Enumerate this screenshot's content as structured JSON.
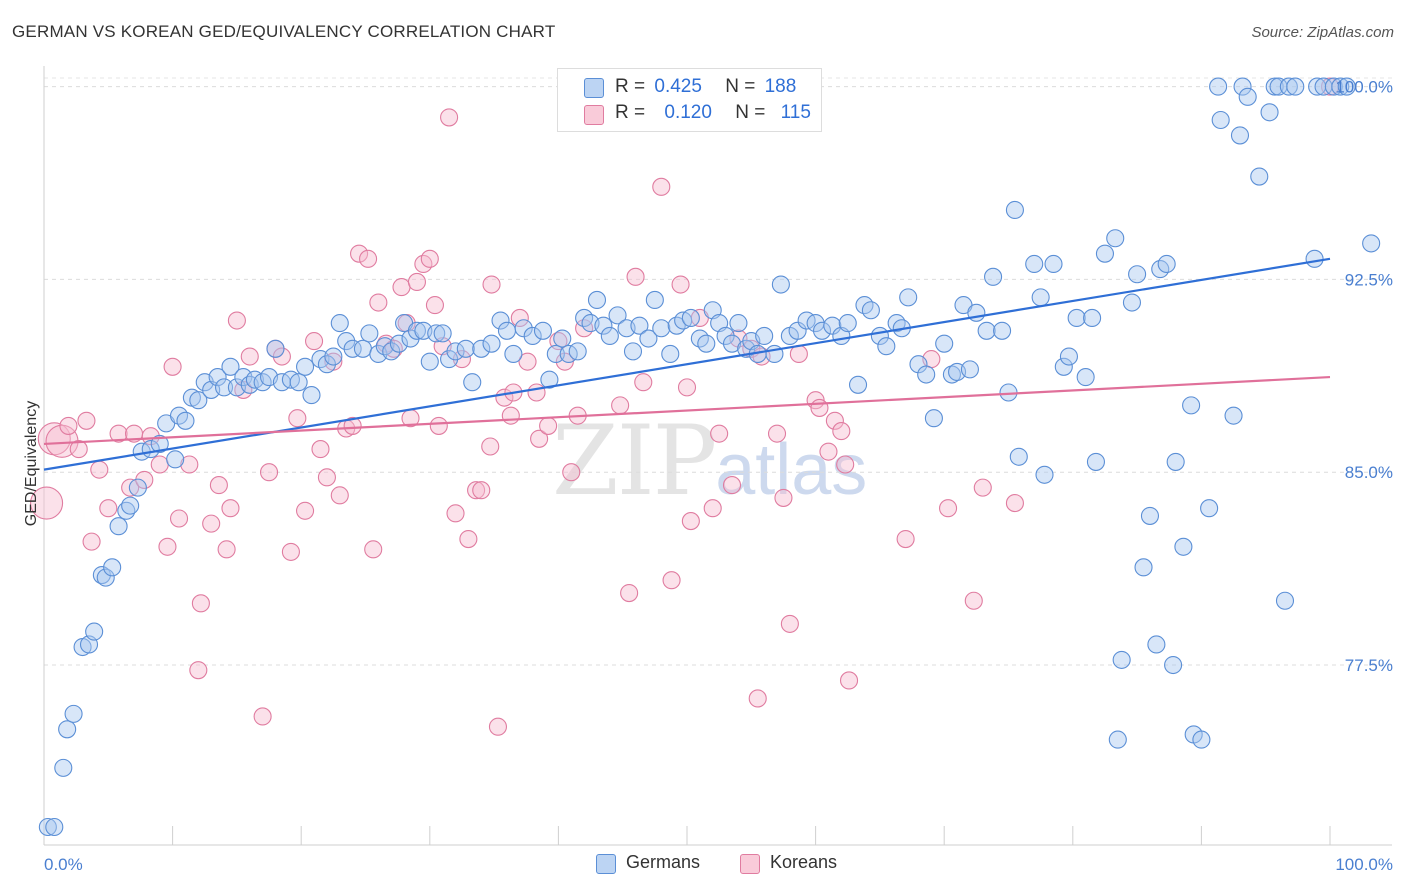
{
  "header": {
    "title": "GERMAN VS KOREAN GED/EQUIVALENCY CORRELATION CHART",
    "source": "Source: ZipAtlas.com"
  },
  "legend": {
    "germans": {
      "r_label": "R =",
      "r_value": "0.425",
      "n_label": "N =",
      "n_value": "188"
    },
    "koreans": {
      "r_label": "R =",
      "r_value": "0.120",
      "n_label": "N =",
      "n_value": "115"
    }
  },
  "bottom_legend": {
    "germans": "Germans",
    "koreans": "Koreans"
  },
  "watermark": {
    "zip": "ZIP",
    "atlas": "atlas"
  },
  "colors": {
    "german_fill": "#a9c8f0",
    "german_stroke": "#5b8fd6",
    "german_line": "#2f6fd6",
    "korean_fill": "#f7bcd0",
    "korean_stroke": "#e07ca0",
    "korean_line": "#e0709a",
    "tick_text": "#4a7fd0"
  },
  "chart_data": {
    "type": "scatter",
    "title": "GERMAN VS KOREAN GED/EQUIVALENCY CORRELATION CHART",
    "xlabel": "",
    "ylabel": "GED/Equivalency",
    "xlim": [
      0,
      100
    ],
    "ylim": [
      70.5,
      100.8
    ],
    "x_tick_labels": [
      "0.0%",
      "100.0%"
    ],
    "y_ticks": [
      77.5,
      85.0,
      92.5,
      100.0
    ],
    "y_tick_labels": [
      "77.5%",
      "85.0%",
      "92.5%",
      "100.0%"
    ],
    "grid": "horizontal dashed",
    "legend_position": "top-center",
    "series": [
      {
        "name": "Germans",
        "r": 0.425,
        "n": 188,
        "trend": {
          "x": [
            0,
            100
          ],
          "y": [
            85.1,
            93.3
          ]
        },
        "points": [
          [
            0.3,
            71.2
          ],
          [
            0.8,
            71.2
          ],
          [
            1.5,
            73.5
          ],
          [
            1.8,
            75.0
          ],
          [
            2.3,
            75.6
          ],
          [
            3.0,
            78.2
          ],
          [
            3.5,
            78.3
          ],
          [
            3.9,
            78.8
          ],
          [
            4.5,
            81.0
          ],
          [
            4.8,
            80.9
          ],
          [
            5.3,
            81.3
          ],
          [
            5.8,
            82.9
          ],
          [
            6.4,
            83.5
          ],
          [
            6.7,
            83.7
          ],
          [
            7.3,
            84.4
          ],
          [
            7.6,
            85.8
          ],
          [
            8.3,
            85.9
          ],
          [
            9.0,
            86.1
          ],
          [
            9.5,
            86.9
          ],
          [
            10.2,
            85.5
          ],
          [
            10.5,
            87.2
          ],
          [
            11.0,
            87.0
          ],
          [
            11.5,
            87.9
          ],
          [
            12.0,
            87.8
          ],
          [
            12.5,
            88.5
          ],
          [
            13.0,
            88.2
          ],
          [
            13.5,
            88.7
          ],
          [
            14.0,
            88.3
          ],
          [
            14.5,
            89.1
          ],
          [
            15.0,
            88.3
          ],
          [
            15.5,
            88.7
          ],
          [
            16.0,
            88.4
          ],
          [
            16.4,
            88.6
          ],
          [
            17.0,
            88.5
          ],
          [
            17.5,
            88.7
          ],
          [
            18.0,
            89.8
          ],
          [
            18.5,
            88.5
          ],
          [
            19.2,
            88.6
          ],
          [
            19.8,
            88.5
          ],
          [
            20.3,
            89.1
          ],
          [
            20.8,
            88.0
          ],
          [
            21.5,
            89.4
          ],
          [
            22.0,
            89.2
          ],
          [
            22.5,
            89.5
          ],
          [
            23.0,
            90.8
          ],
          [
            23.5,
            90.1
          ],
          [
            24.0,
            89.8
          ],
          [
            24.8,
            89.8
          ],
          [
            25.3,
            90.4
          ],
          [
            26.0,
            89.6
          ],
          [
            26.5,
            89.9
          ],
          [
            27.0,
            89.7
          ],
          [
            27.6,
            90.0
          ],
          [
            28.0,
            90.8
          ],
          [
            28.5,
            90.2
          ],
          [
            29.0,
            90.5
          ],
          [
            29.5,
            90.5
          ],
          [
            30.0,
            89.3
          ],
          [
            30.5,
            90.4
          ],
          [
            31.0,
            90.4
          ],
          [
            31.5,
            89.4
          ],
          [
            32.0,
            89.7
          ],
          [
            32.8,
            89.8
          ],
          [
            33.3,
            88.5
          ],
          [
            34.0,
            89.8
          ],
          [
            34.8,
            90.0
          ],
          [
            35.5,
            90.9
          ],
          [
            36.0,
            90.5
          ],
          [
            36.5,
            89.6
          ],
          [
            37.3,
            90.6
          ],
          [
            38.0,
            90.3
          ],
          [
            38.8,
            90.5
          ],
          [
            39.3,
            88.6
          ],
          [
            39.8,
            89.6
          ],
          [
            40.3,
            90.2
          ],
          [
            40.8,
            89.6
          ],
          [
            41.5,
            89.7
          ],
          [
            42.0,
            91.0
          ],
          [
            42.5,
            90.8
          ],
          [
            43.0,
            91.7
          ],
          [
            43.5,
            90.7
          ],
          [
            44.0,
            90.3
          ],
          [
            44.6,
            91.1
          ],
          [
            45.3,
            90.6
          ],
          [
            45.8,
            89.7
          ],
          [
            46.3,
            90.7
          ],
          [
            47.0,
            90.2
          ],
          [
            47.5,
            91.7
          ],
          [
            48.0,
            90.6
          ],
          [
            48.7,
            89.6
          ],
          [
            49.2,
            90.7
          ],
          [
            49.7,
            90.9
          ],
          [
            50.3,
            91.0
          ],
          [
            51.0,
            90.2
          ],
          [
            51.5,
            90.0
          ],
          [
            52.0,
            91.3
          ],
          [
            52.5,
            90.8
          ],
          [
            53.0,
            90.3
          ],
          [
            53.5,
            90.0
          ],
          [
            54.0,
            90.8
          ],
          [
            54.6,
            89.8
          ],
          [
            55.0,
            90.1
          ],
          [
            55.5,
            89.6
          ],
          [
            56.0,
            90.3
          ],
          [
            56.8,
            89.6
          ],
          [
            57.3,
            92.3
          ],
          [
            58.0,
            90.3
          ],
          [
            58.6,
            90.5
          ],
          [
            59.3,
            90.9
          ],
          [
            60.0,
            90.8
          ],
          [
            60.5,
            90.5
          ],
          [
            61.3,
            90.7
          ],
          [
            62.0,
            90.3
          ],
          [
            62.5,
            90.8
          ],
          [
            63.3,
            88.4
          ],
          [
            63.8,
            91.5
          ],
          [
            64.3,
            91.3
          ],
          [
            65.0,
            90.3
          ],
          [
            65.5,
            89.9
          ],
          [
            66.3,
            90.8
          ],
          [
            66.7,
            90.6
          ],
          [
            67.2,
            91.8
          ],
          [
            68.0,
            89.2
          ],
          [
            68.6,
            88.8
          ],
          [
            69.2,
            87.1
          ],
          [
            70.0,
            90.0
          ],
          [
            70.6,
            88.8
          ],
          [
            71.0,
            88.9
          ],
          [
            71.5,
            91.5
          ],
          [
            72.0,
            89.0
          ],
          [
            72.5,
            91.2
          ],
          [
            73.3,
            90.5
          ],
          [
            73.8,
            92.6
          ],
          [
            74.5,
            90.5
          ],
          [
            75.0,
            88.1
          ],
          [
            75.5,
            95.2
          ],
          [
            75.8,
            85.6
          ],
          [
            77.0,
            93.1
          ],
          [
            77.5,
            91.8
          ],
          [
            77.8,
            84.9
          ],
          [
            78.5,
            93.1
          ],
          [
            79.3,
            89.1
          ],
          [
            79.7,
            89.5
          ],
          [
            80.3,
            91.0
          ],
          [
            81.0,
            88.7
          ],
          [
            81.5,
            91.0
          ],
          [
            81.8,
            85.4
          ],
          [
            82.5,
            93.5
          ],
          [
            83.3,
            94.1
          ],
          [
            83.8,
            77.7
          ],
          [
            83.5,
            74.6
          ],
          [
            84.6,
            91.6
          ],
          [
            85.0,
            92.7
          ],
          [
            85.5,
            81.3
          ],
          [
            86.0,
            83.3
          ],
          [
            86.5,
            78.3
          ],
          [
            86.8,
            92.9
          ],
          [
            87.3,
            93.1
          ],
          [
            87.8,
            77.5
          ],
          [
            88.0,
            85.4
          ],
          [
            88.6,
            82.1
          ],
          [
            89.2,
            87.6
          ],
          [
            89.4,
            74.8
          ],
          [
            90.0,
            74.6
          ],
          [
            90.6,
            83.6
          ],
          [
            91.3,
            100.0
          ],
          [
            91.5,
            98.7
          ],
          [
            92.5,
            87.2
          ],
          [
            93.0,
            98.1
          ],
          [
            93.2,
            100.0
          ],
          [
            93.6,
            99.6
          ],
          [
            94.5,
            96.5
          ],
          [
            95.3,
            99.0
          ],
          [
            95.7,
            100.0
          ],
          [
            96.0,
            100.0
          ],
          [
            96.5,
            80.0
          ],
          [
            96.8,
            100.0
          ],
          [
            97.3,
            100.0
          ],
          [
            98.8,
            93.3
          ],
          [
            99.0,
            100.0
          ],
          [
            99.5,
            100.0
          ],
          [
            100.3,
            100.0
          ],
          [
            100.8,
            100.0
          ],
          [
            101.3,
            100.0
          ],
          [
            103.2,
            93.9
          ]
        ]
      },
      {
        "name": "Koreans",
        "r": 0.12,
        "n": 115,
        "trend": {
          "x": [
            0,
            100
          ],
          "y": [
            86.1,
            88.7
          ]
        },
        "points": [
          [
            0.2,
            83.8
          ],
          [
            0.8,
            86.3
          ],
          [
            1.4,
            86.2
          ],
          [
            1.9,
            86.8
          ],
          [
            2.7,
            85.9
          ],
          [
            3.3,
            87.0
          ],
          [
            3.7,
            82.3
          ],
          [
            4.3,
            85.1
          ],
          [
            5.0,
            83.6
          ],
          [
            5.8,
            86.5
          ],
          [
            6.7,
            84.4
          ],
          [
            7.0,
            86.5
          ],
          [
            7.8,
            84.7
          ],
          [
            8.3,
            86.4
          ],
          [
            9.0,
            85.3
          ],
          [
            9.6,
            82.1
          ],
          [
            10.0,
            89.1
          ],
          [
            10.5,
            83.2
          ],
          [
            11.3,
            85.3
          ],
          [
            12.2,
            79.9
          ],
          [
            12.0,
            77.3
          ],
          [
            13.0,
            83.0
          ],
          [
            13.6,
            84.5
          ],
          [
            14.2,
            82.0
          ],
          [
            14.5,
            83.6
          ],
          [
            15.0,
            90.9
          ],
          [
            15.5,
            88.2
          ],
          [
            16.0,
            89.5
          ],
          [
            17.0,
            75.5
          ],
          [
            17.5,
            85.0
          ],
          [
            18.0,
            89.8
          ],
          [
            18.5,
            89.5
          ],
          [
            19.2,
            81.9
          ],
          [
            19.7,
            87.1
          ],
          [
            20.3,
            83.5
          ],
          [
            21.0,
            90.1
          ],
          [
            21.5,
            85.9
          ],
          [
            22.0,
            84.8
          ],
          [
            22.5,
            89.3
          ],
          [
            23.0,
            84.1
          ],
          [
            23.5,
            86.7
          ],
          [
            24.0,
            86.8
          ],
          [
            24.5,
            93.5
          ],
          [
            25.2,
            93.3
          ],
          [
            25.6,
            82.0
          ],
          [
            26.0,
            91.6
          ],
          [
            26.6,
            90.0
          ],
          [
            27.2,
            89.8
          ],
          [
            27.8,
            92.2
          ],
          [
            28.2,
            90.8
          ],
          [
            28.5,
            87.1
          ],
          [
            29.0,
            92.4
          ],
          [
            29.5,
            93.1
          ],
          [
            30.0,
            93.3
          ],
          [
            30.4,
            91.5
          ],
          [
            30.7,
            86.8
          ],
          [
            31.0,
            89.9
          ],
          [
            31.5,
            98.8
          ],
          [
            32.0,
            83.4
          ],
          [
            32.5,
            89.4
          ],
          [
            33.0,
            82.4
          ],
          [
            33.6,
            84.3
          ],
          [
            34.0,
            84.3
          ],
          [
            34.8,
            92.3
          ],
          [
            34.7,
            86.0
          ],
          [
            35.3,
            75.1
          ],
          [
            35.8,
            87.9
          ],
          [
            36.3,
            87.2
          ],
          [
            36.5,
            88.1
          ],
          [
            37.0,
            91.0
          ],
          [
            37.6,
            89.3
          ],
          [
            38.3,
            88.1
          ],
          [
            38.5,
            86.3
          ],
          [
            39.2,
            86.8
          ],
          [
            40.0,
            90.1
          ],
          [
            40.5,
            89.3
          ],
          [
            41.0,
            85.0
          ],
          [
            41.5,
            87.2
          ],
          [
            42.0,
            90.6
          ],
          [
            44.8,
            87.6
          ],
          [
            45.5,
            80.3
          ],
          [
            46.0,
            92.6
          ],
          [
            46.6,
            88.5
          ],
          [
            48.0,
            96.1
          ],
          [
            48.8,
            80.8
          ],
          [
            49.5,
            92.3
          ],
          [
            50.0,
            88.3
          ],
          [
            50.3,
            83.1
          ],
          [
            51.0,
            91.0
          ],
          [
            52.0,
            83.6
          ],
          [
            52.5,
            86.5
          ],
          [
            53.5,
            84.5
          ],
          [
            54.0,
            90.2
          ],
          [
            55.0,
            89.8
          ],
          [
            55.5,
            76.2
          ],
          [
            55.8,
            89.5
          ],
          [
            57.0,
            86.5
          ],
          [
            57.5,
            84.0
          ],
          [
            58.0,
            79.1
          ],
          [
            58.7,
            89.6
          ],
          [
            60.0,
            87.8
          ],
          [
            60.3,
            87.5
          ],
          [
            61.0,
            85.8
          ],
          [
            61.5,
            87.0
          ],
          [
            62.0,
            86.6
          ],
          [
            62.3,
            85.3
          ],
          [
            62.6,
            76.9
          ],
          [
            67.0,
            82.4
          ],
          [
            69.0,
            89.4
          ],
          [
            70.3,
            83.6
          ],
          [
            72.3,
            80.0
          ],
          [
            73.0,
            84.4
          ],
          [
            75.5,
            83.8
          ],
          [
            100.0,
            100.0
          ]
        ]
      }
    ]
  }
}
